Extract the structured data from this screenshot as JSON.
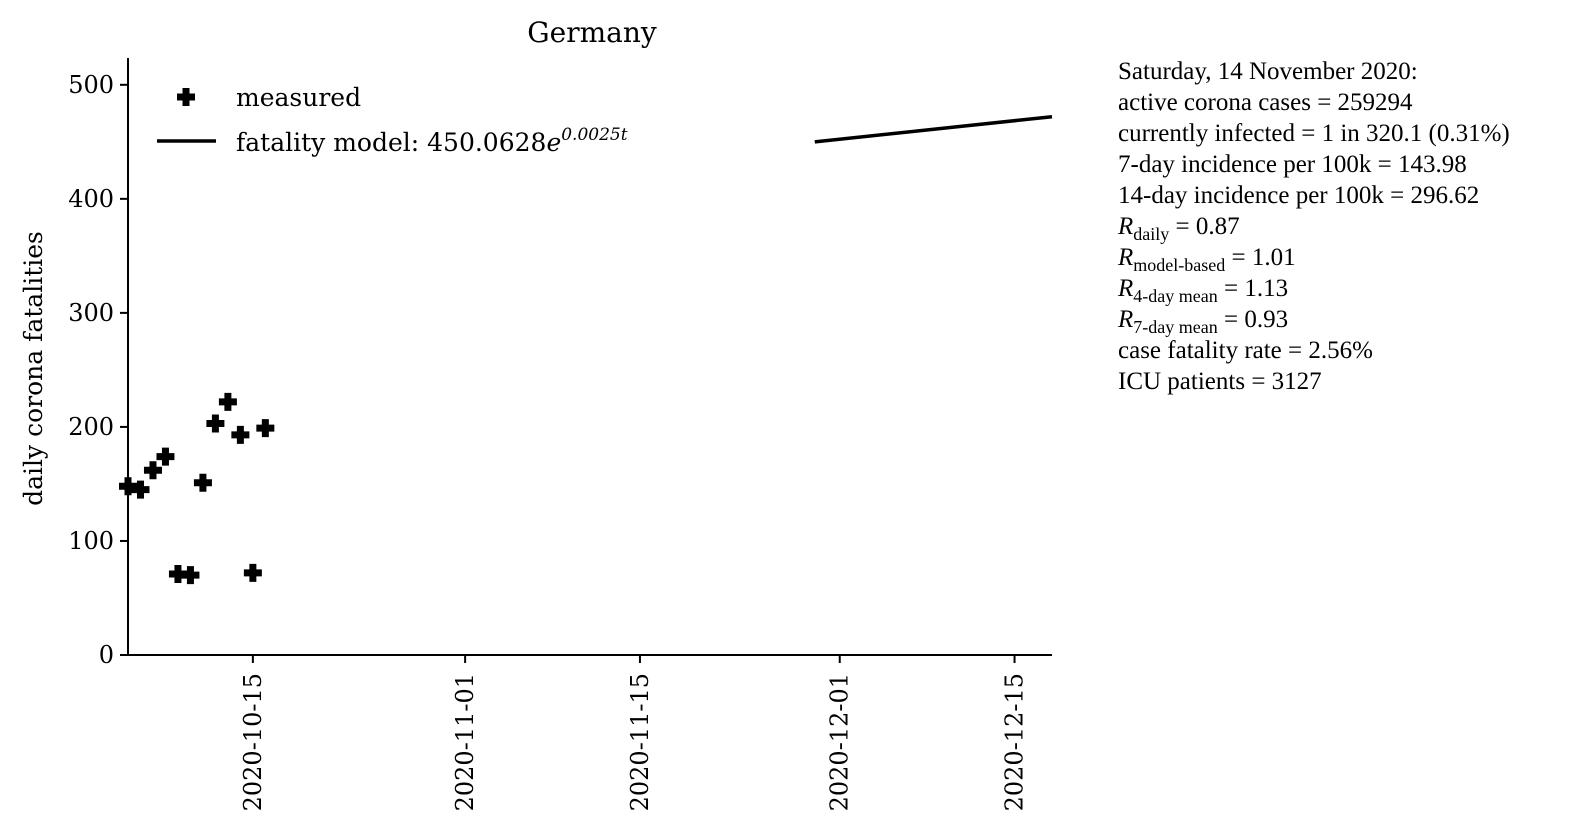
{
  "chart_data": {
    "type": "scatter",
    "title": "Germany",
    "ylabel": "daily corona fatalities",
    "xlabel": "",
    "ylim": [
      0,
      520
    ],
    "xlim": [
      "2020-10-05",
      "2020-12-18"
    ],
    "yticks": [
      0,
      100,
      200,
      300,
      400,
      500
    ],
    "xticks": [
      "2020-10-15",
      "2020-11-01",
      "2020-11-15",
      "2020-12-01",
      "2020-12-15"
    ],
    "legend_position": "top-left",
    "legend": {
      "measured": "measured",
      "model_prefix": "fatality model: 450.0628",
      "model_e": "e",
      "model_exp": "0.0025t"
    },
    "series": [
      {
        "name": "measured",
        "kind": "scatter",
        "marker": "plus",
        "x": [
          "2020-10-05",
          "2020-10-06",
          "2020-10-07",
          "2020-10-08",
          "2020-10-09",
          "2020-10-10",
          "2020-10-11",
          "2020-10-12",
          "2020-10-13",
          "2020-10-14",
          "2020-10-15",
          "2020-10-16"
        ],
        "y": [
          148,
          145,
          162,
          174,
          71,
          70,
          151,
          203,
          222,
          193,
          72,
          199
        ]
      },
      {
        "name": "fatality model: 450.0628e^0.0025t",
        "kind": "line",
        "x": [
          "2020-11-29",
          "2020-12-18"
        ],
        "y": [
          450,
          472
        ]
      }
    ],
    "color": "#000000"
  },
  "info": {
    "date": "Saturday, 14 November 2020:",
    "active_cases": "active corona cases = 259294",
    "currently_infected": "currently infected = 1 in 320.1 (0.31%)",
    "incidence7": "7-day incidence per 100k = 143.98",
    "incidence14": "14-day incidence per 100k = 296.62",
    "r_symbol": "R",
    "r_daily_sub": "daily",
    "r_daily_val": " = 0.87",
    "r_model_sub": "model-based",
    "r_model_val": " = 1.01",
    "r_4day_sub": "4-day mean",
    "r_4day_val": " = 1.13",
    "r_7day_sub": "7-day mean",
    "r_7day_val": " = 0.93",
    "cfr": "case fatality rate = 2.56%",
    "icu": "ICU patients = 3127"
  }
}
